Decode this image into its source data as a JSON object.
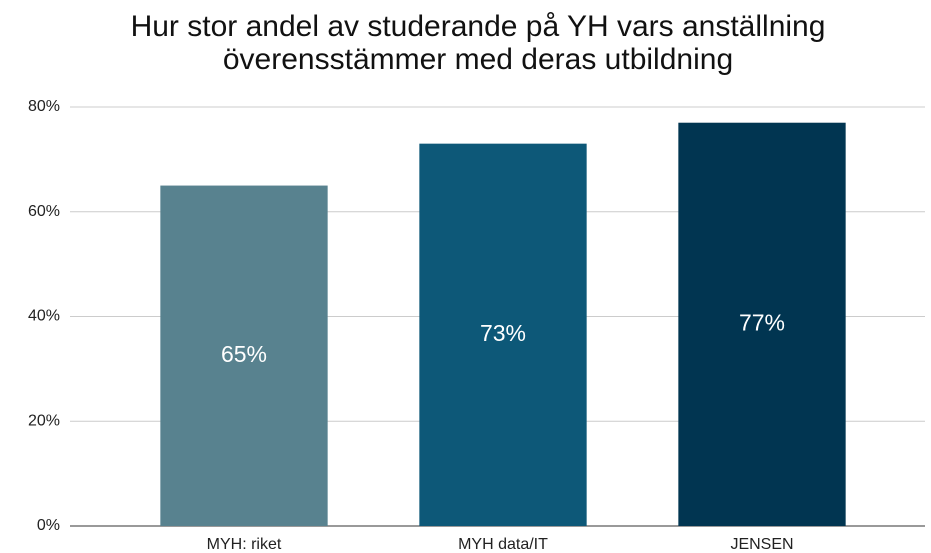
{
  "chart_data": {
    "type": "bar",
    "title": "Hur stor andel av studerande på YH vars anställning överensstämmer med deras utbildning",
    "categories": [
      "MYH: riket",
      "MYH data/IT",
      "JENSEN"
    ],
    "values": [
      65,
      73,
      77
    ],
    "value_labels": [
      "65%",
      "73%",
      "77%"
    ],
    "colors": [
      "#58828f",
      "#0d5878",
      "#013551"
    ],
    "ylim": [
      0,
      80
    ],
    "yticks": [
      {
        "value": 0,
        "label": "0%"
      },
      {
        "value": 20,
        "label": "20%"
      },
      {
        "value": 40,
        "label": "40%"
      },
      {
        "value": 60,
        "label": "60%"
      },
      {
        "value": 80,
        "label": "80%"
      }
    ],
    "grid": true
  }
}
